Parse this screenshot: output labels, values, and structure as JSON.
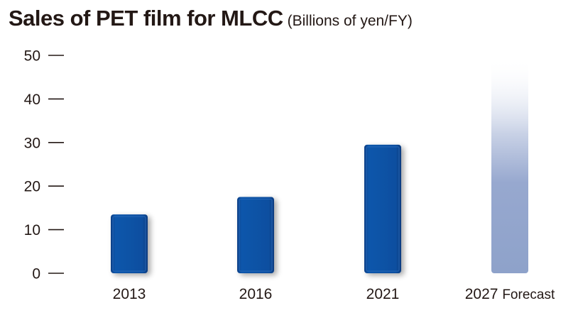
{
  "chart_data": {
    "type": "bar",
    "title": "Sales of PET film for MLCC",
    "subtitle": "(Billions of yen/FY)",
    "categories": [
      "2013",
      "2016",
      "2021",
      "2027 Forecast"
    ],
    "values": [
      13.5,
      17.5,
      29.5,
      49.5
    ],
    "forecast_index": 3,
    "yticks": [
      0,
      10,
      20,
      30,
      40,
      50
    ],
    "ylim": [
      0,
      50
    ],
    "grid": false,
    "colors": {
      "bar": "#0a4fa0",
      "forecast": "#8fa3cc",
      "text": "#231815"
    }
  }
}
